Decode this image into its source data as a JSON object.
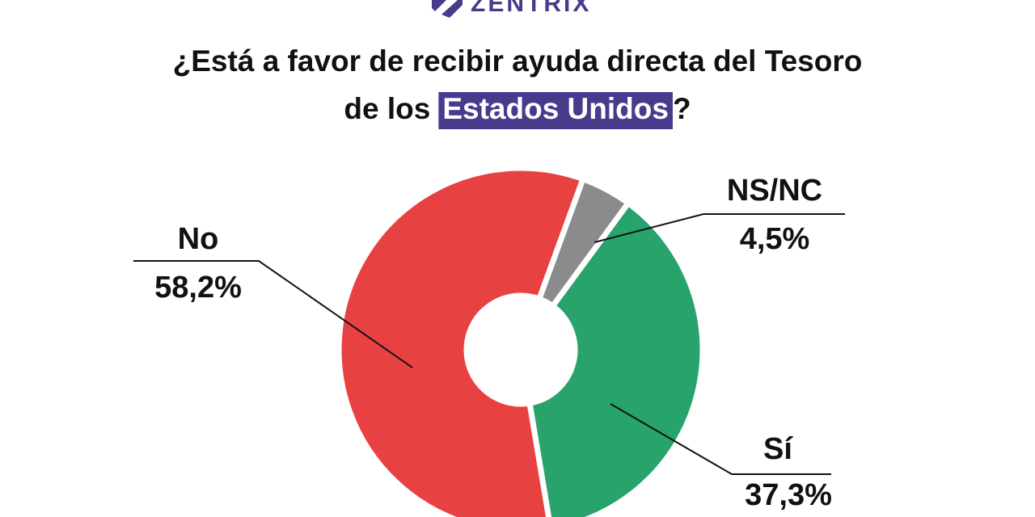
{
  "logo": "ZENTRIX",
  "chart_data": {
    "type": "donut",
    "title": {
      "line1": "¿Está a favor de recibir ayuda directa del Tesoro",
      "line2_before": "de los",
      "highlight": "Estados Unidos",
      "line2_after": "?"
    },
    "categories": [
      "No",
      "NS/NC",
      "Sí"
    ],
    "values": [
      58.2,
      4.5,
      37.3
    ],
    "value_labels": [
      "58,2%",
      "4,5%",
      "37,3%"
    ],
    "colors": [
      "#e84142",
      "#8b8b8d",
      "#27a36b"
    ]
  }
}
